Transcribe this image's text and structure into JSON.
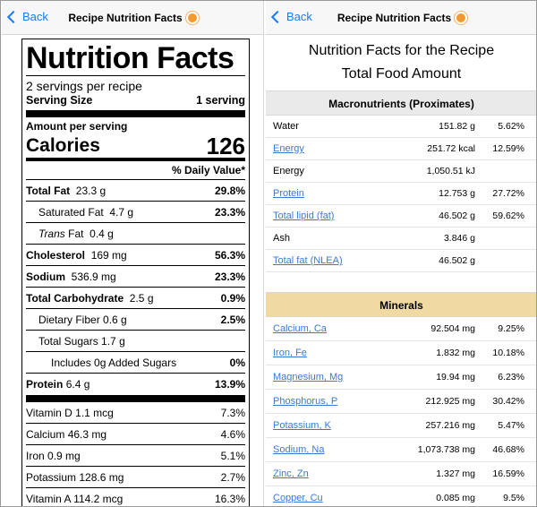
{
  "left_pane": {
    "back_label": "Back",
    "title": "Recipe Nutrition Facts",
    "label": {
      "heading": "Nutrition Facts",
      "servings_per_recipe": "2 servings per recipe",
      "serving_size_label": "Serving Size",
      "serving_size_value": "1 serving",
      "amount_per_serving": "Amount per serving",
      "calories_label": "Calories",
      "calories_value": "126",
      "daily_value_header": "% Daily Value*",
      "rows": [
        {
          "name": "Total Fat",
          "amount": "23.3 g",
          "dv": "29.8%"
        },
        {
          "name": "Saturated Fat",
          "amount": "4.7 g",
          "dv": "23.3%"
        },
        {
          "name": "Trans",
          "suffix": "Fat",
          "amount": "0.4 g",
          "dv": ""
        },
        {
          "name": "Cholesterol",
          "amount": "169 mg",
          "dv": "56.3%"
        },
        {
          "name": "Sodium",
          "amount": "536.9 mg",
          "dv": "23.3%"
        },
        {
          "name": "Total Carbohydrate",
          "amount": "2.5 g",
          "dv": "0.9%"
        },
        {
          "name": "Dietary Fiber",
          "amount": "0.6 g",
          "dv": "2.5%"
        },
        {
          "name": "Total Sugars",
          "amount": "1.7 g",
          "dv": ""
        },
        {
          "name": "Includes 0g Added Sugars",
          "amount": "",
          "dv": "0%"
        },
        {
          "name": "Protein",
          "amount": "6.4 g",
          "dv": "13.9%"
        }
      ],
      "vitamins": [
        {
          "name": "Vitamin D",
          "amount": "1.1 mcg",
          "dv": "7.3%"
        },
        {
          "name": "Calcium",
          "amount": "46.3 mg",
          "dv": "4.6%"
        },
        {
          "name": "Iron",
          "amount": "0.9 mg",
          "dv": "5.1%"
        },
        {
          "name": "Potassium",
          "amount": "128.6 mg",
          "dv": "2.7%"
        },
        {
          "name": "Vitamin A",
          "amount": "114.2 mcg",
          "dv": "16.3%"
        }
      ]
    }
  },
  "right_pane": {
    "back_label": "Back",
    "title": "Recipe Nutrition Facts",
    "heading_line1": "Nutrition Facts for the Recipe",
    "heading_line2": "Total Food Amount",
    "macro_section": "Macronutrients (Proximates)",
    "macros": [
      {
        "name": "Water",
        "amount": "151.82 g",
        "pct": "5.62%",
        "link": false
      },
      {
        "name": "Energy",
        "amount": "251.72 kcal",
        "pct": "12.59%",
        "link": true
      },
      {
        "name": "Energy",
        "amount": "1,050.51 kJ",
        "pct": "",
        "link": false
      },
      {
        "name": "Protein",
        "amount": "12.753 g",
        "pct": "27.72%",
        "link": true
      },
      {
        "name": "Total lipid (fat)",
        "amount": "46.502 g",
        "pct": "59.62%",
        "link": true
      },
      {
        "name": "Ash",
        "amount": "3.846 g",
        "pct": "",
        "link": false
      },
      {
        "name": "Total fat (NLEA)",
        "amount": "46.502 g",
        "pct": "",
        "link": true
      }
    ],
    "minerals_section": "Minerals",
    "minerals": [
      {
        "name": "Calcium, Ca",
        "amount": "92.504 mg",
        "pct": "9.25%"
      },
      {
        "name": "Iron, Fe",
        "amount": "1.832 mg",
        "pct": "10.18%"
      },
      {
        "name": "Magnesium, Mg",
        "amount": "19.94 mg",
        "pct": "6.23%"
      },
      {
        "name": "Phosphorus, P",
        "amount": "212.925 mg",
        "pct": "30.42%"
      },
      {
        "name": "Potassium, K",
        "amount": "257.216 mg",
        "pct": "5.47%"
      },
      {
        "name": "Sodium, Na",
        "amount": "1,073.738 mg",
        "pct": "46.68%"
      },
      {
        "name": "Zinc, Zn",
        "amount": "1.327 mg",
        "pct": "16.59%"
      },
      {
        "name": "Copper, Cu",
        "amount": "0.085 mg",
        "pct": "9.5%"
      }
    ]
  },
  "colors": {
    "link": "#3a78d8",
    "nav_blue": "#1a7cf2",
    "minerals_header": "#f0daa2",
    "macro_header": "#eaeaea"
  }
}
